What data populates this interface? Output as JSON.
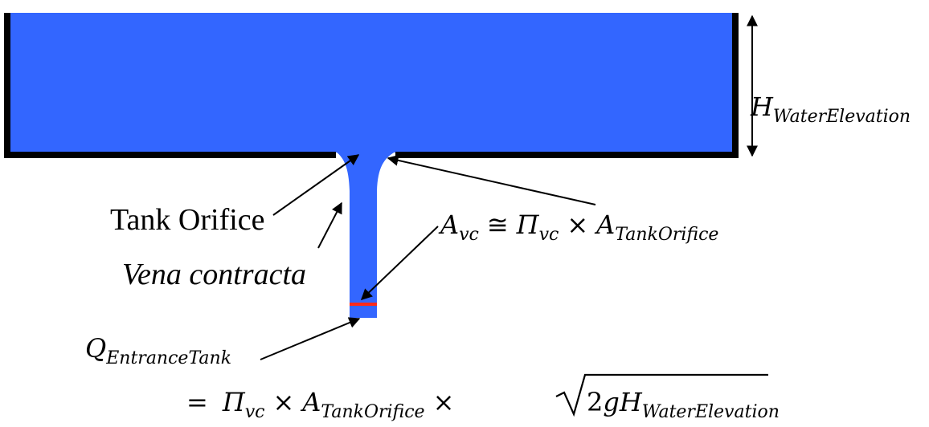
{
  "labels": {
    "tank_orifice": "Tank Orifice",
    "vena_contracta": "Vena contracta"
  },
  "equations": {
    "water_elevation": {
      "symbol": "H",
      "subscript": "WaterElevation"
    },
    "area_vc": {
      "lhs_symbol": "A",
      "lhs_subscript": "vc",
      "relation": "≅",
      "coef_symbol": "Π",
      "coef_subscript": "vc",
      "times": "×",
      "area_symbol": "A",
      "area_subscript": "TankOrifice"
    },
    "flow": {
      "lhs_symbol": "Q",
      "lhs_subscript": "EntranceTank",
      "equals": "=",
      "coef_symbol": "Π",
      "coef_subscript": "vc",
      "times_1": "×",
      "area_symbol": "A",
      "area_subscript": "TankOrifice",
      "times_2": "×",
      "radicand_coefficient": "2",
      "radicand_g": "g",
      "radicand_symbol": "H",
      "radicand_subscript": "WaterElevation"
    }
  },
  "colors": {
    "water": "#3366ff",
    "tank_wall": "#000000",
    "vena_contracta_marker": "#ff2a1a",
    "arrow": "#000000"
  }
}
